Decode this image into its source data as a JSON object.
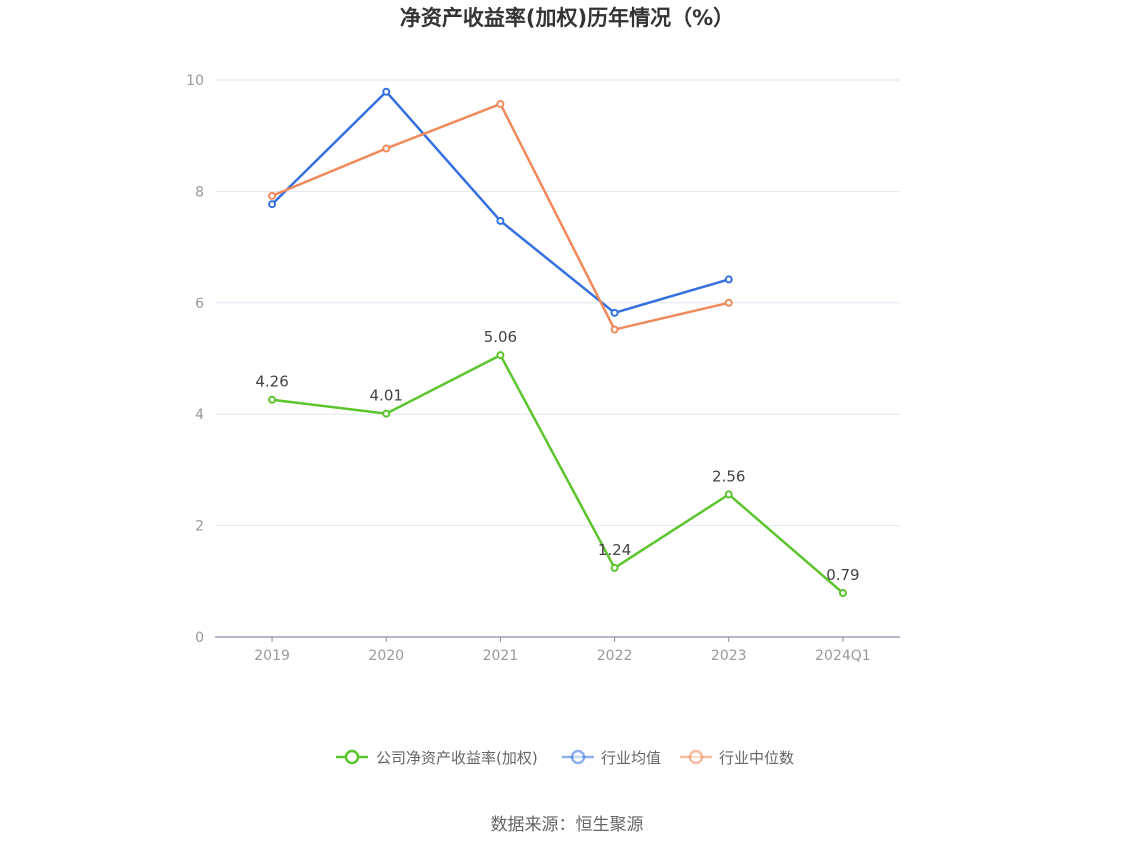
{
  "chart_data": {
    "type": "line",
    "title": "净资产收益率(加权)历年情况（%）",
    "categories": [
      "2019",
      "2020",
      "2021",
      "2022",
      "2023",
      "2024Q1"
    ],
    "yticks": [
      "0",
      "2",
      "4",
      "6",
      "8",
      "10"
    ],
    "ylim": [
      0,
      10
    ],
    "grid": true,
    "legend_position": "bottom",
    "series": [
      {
        "name": "公司净资产收益率(加权)",
        "color": "#5cc52d",
        "values": [
          4.26,
          4.01,
          5.06,
          1.24,
          2.56,
          0.79
        ],
        "labels": [
          "4.26",
          "4.01",
          "5.06",
          "1.24",
          "2.56",
          "0.79"
        ]
      },
      {
        "name": "行业均值",
        "color": "#3470e0",
        "values": [
          7.77,
          9.79,
          7.47,
          5.82,
          6.42,
          null
        ]
      },
      {
        "name": "行业中位数",
        "color": "#f08a5a",
        "values": [
          7.92,
          8.77,
          9.57,
          5.52,
          6.0,
          null
        ]
      }
    ],
    "source": "数据来源：恒生聚源"
  }
}
